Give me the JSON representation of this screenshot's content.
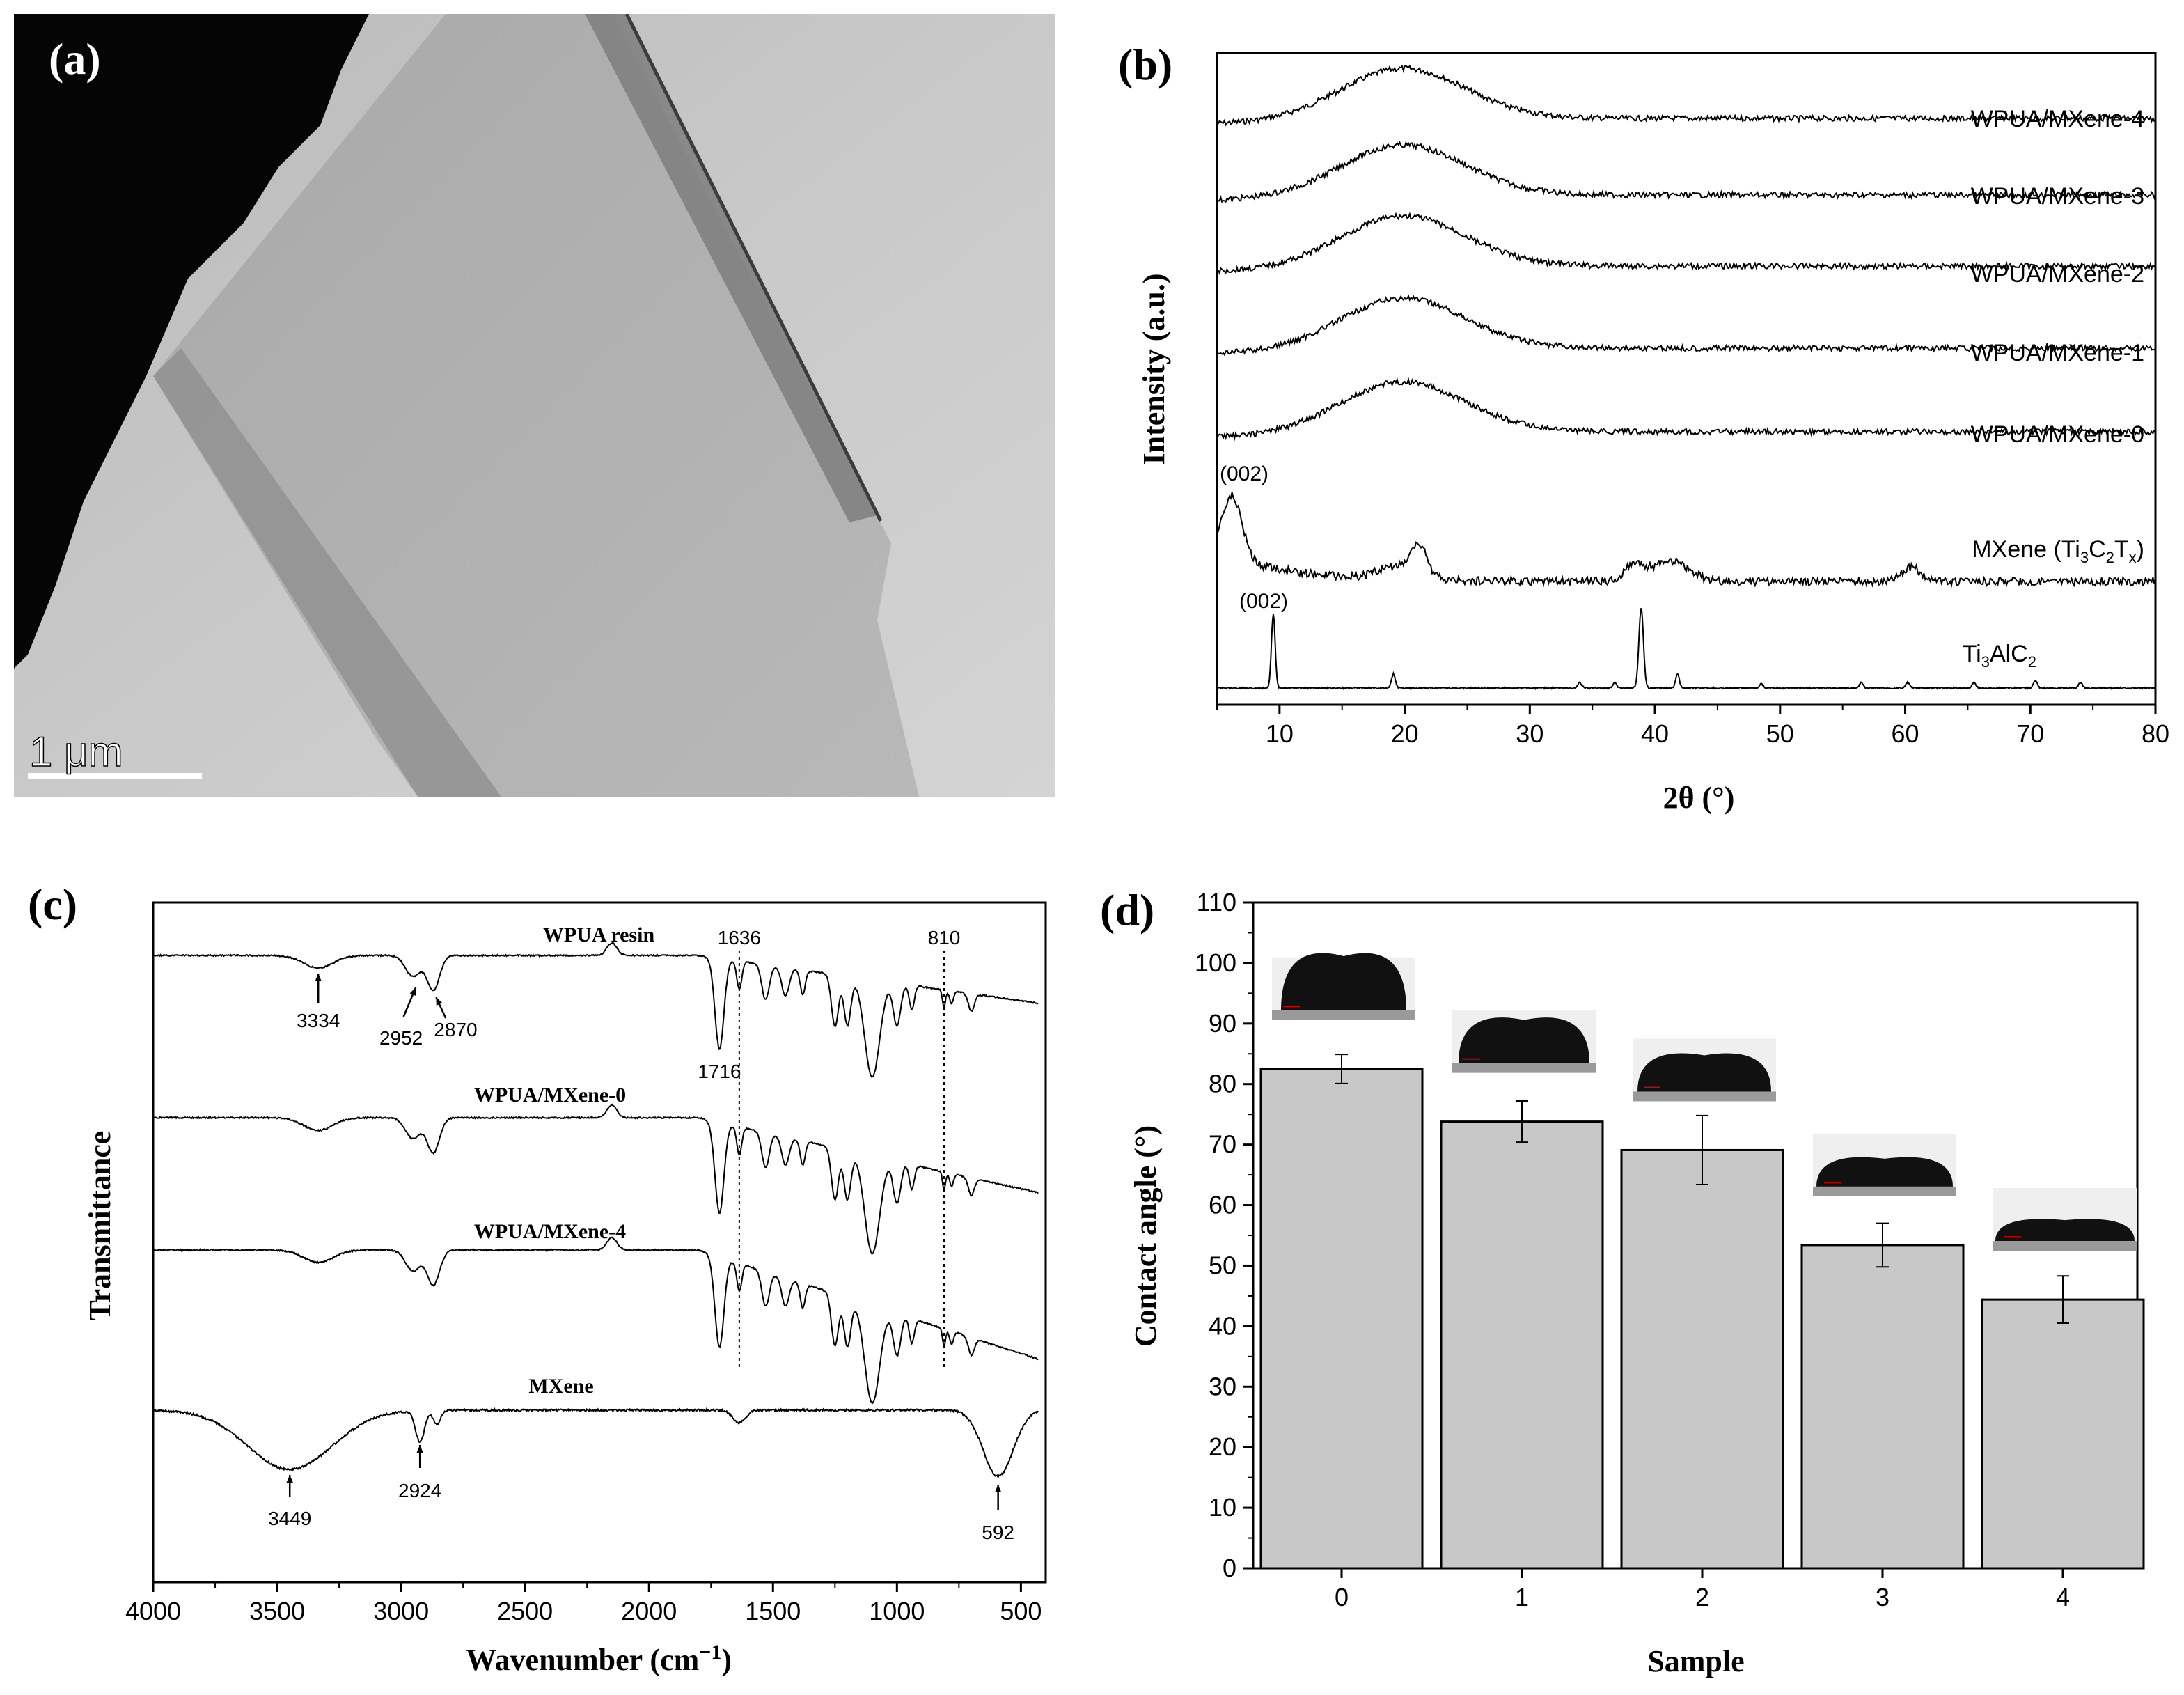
{
  "panels": {
    "a": {
      "label": "(a)",
      "scale_bar": "1 μm"
    },
    "b": {
      "label": "(b)"
    },
    "c": {
      "label": "(c)"
    },
    "d": {
      "label": "(d)"
    }
  },
  "chart_data": [
    {
      "panel": "(b)",
      "type": "line",
      "title": "",
      "xlabel": "2θ (°)",
      "ylabel": "Intensity (a.u.)",
      "xlim": [
        5,
        80
      ],
      "xticks": [
        10,
        20,
        30,
        40,
        50,
        60,
        70,
        80
      ],
      "series": [
        {
          "name": "WPUA/MXene-4",
          "peak_2theta": 20
        },
        {
          "name": "WPUA/MXene-3",
          "peak_2theta": 20
        },
        {
          "name": "WPUA/MXene-2",
          "peak_2theta": 20
        },
        {
          "name": "WPUA/MXene-1",
          "peak_2theta": 20
        },
        {
          "name": "WPUA/MXene-0",
          "peak_2theta": 20
        },
        {
          "name": "MXene (Ti3C2Tx)",
          "peaks_2theta": [
            6.2,
            19.5,
            21.2,
            38.2,
            40,
            41.8,
            60.5
          ]
        },
        {
          "name": "Ti3AlC2",
          "peaks_2theta": [
            9.5,
            19.1,
            34,
            38.9,
            41.8,
            48.5,
            56.5,
            60.2,
            65.5,
            70.4,
            74
          ]
        }
      ],
      "legend_labels": [
        "WPUA/MXene-4",
        "WPUA/MXene-3",
        "WPUA/MXene-2",
        "WPUA/MXene-1",
        "WPUA/MXene-0"
      ],
      "mxene_label": {
        "main": "MXene (Ti",
        "s1": "3",
        "m1": "C",
        "s2": "2",
        "m2": "T",
        "s3": "x",
        "end": ")"
      },
      "ti_label": {
        "a": "Ti",
        "s1": "3",
        "b": "AlC",
        "s2": "2"
      },
      "annotations": [
        "(002)",
        "(002)"
      ]
    },
    {
      "panel": "(c)",
      "type": "line",
      "title": "",
      "xlabel": "Wavenumber (cm",
      "xlabel_sup": "−1",
      "xlabel_end": ")",
      "ylabel": "Transmittance",
      "xlim": [
        4000,
        400
      ],
      "xticks": [
        4000,
        3500,
        3000,
        2500,
        2000,
        1500,
        1000,
        500
      ],
      "series": [
        {
          "name": "WPUA resin",
          "bands_cm-1": [
            3334,
            2952,
            2870,
            1716,
            1636,
            810
          ]
        },
        {
          "name": "WPUA/MXene-0",
          "bands_cm-1": [
            3334,
            2952,
            2870,
            1716,
            1636,
            810
          ]
        },
        {
          "name": "WPUA/MXene-4",
          "bands_cm-1": [
            3334,
            2952,
            2870,
            1716,
            1636,
            810
          ]
        },
        {
          "name": "MXene",
          "bands_cm-1": [
            3449,
            2924,
            1636,
            592
          ]
        }
      ],
      "annotations": [
        "1636",
        "810",
        "3334",
        "2952",
        "2870",
        "1716",
        "3449",
        "2924",
        "592"
      ]
    },
    {
      "panel": "(d)",
      "type": "bar",
      "title": "",
      "xlabel": "Sample",
      "ylabel": "Contact angle (°)",
      "categories": [
        "0",
        "1",
        "2",
        "3",
        "4"
      ],
      "values": [
        82.5,
        73.8,
        69.1,
        53.4,
        44.4
      ],
      "errors": [
        2.4,
        3.4,
        5.7,
        3.6,
        3.9
      ],
      "ylim": [
        0,
        110
      ],
      "yticks": [
        0,
        10,
        20,
        30,
        40,
        50,
        60,
        70,
        80,
        90,
        100,
        110
      ],
      "bar_color": "#c8c8c8"
    }
  ]
}
